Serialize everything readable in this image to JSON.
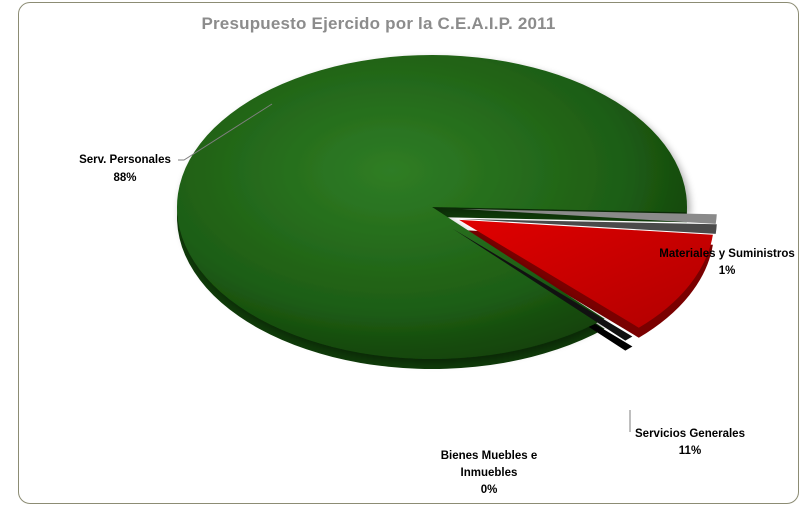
{
  "chart_data": {
    "type": "pie",
    "title": "Presupuesto Ejercido por la C.E.A.I.P. 2011",
    "slices": [
      {
        "label_lines": [
          "Serv. Personales"
        ],
        "pct_label": "88%",
        "value": 88,
        "color": "#1e5e14",
        "icon": "green-slice"
      },
      {
        "label_lines": [
          "Materiales y Suministros"
        ],
        "pct_label": "1%",
        "value": 1,
        "color": "#7a7a7a",
        "icon": "gray-slice"
      },
      {
        "label_lines": [
          "Servicios Generales"
        ],
        "pct_label": "11%",
        "value": 11,
        "color": "#c00000",
        "icon": "red-slice"
      },
      {
        "label_lines": [
          "Bienes Muebles e",
          "Inmuebles"
        ],
        "pct_label": "0%",
        "value": 0,
        "color": "#1a1a1a",
        "icon": "black-slice"
      }
    ],
    "legend": "none"
  }
}
